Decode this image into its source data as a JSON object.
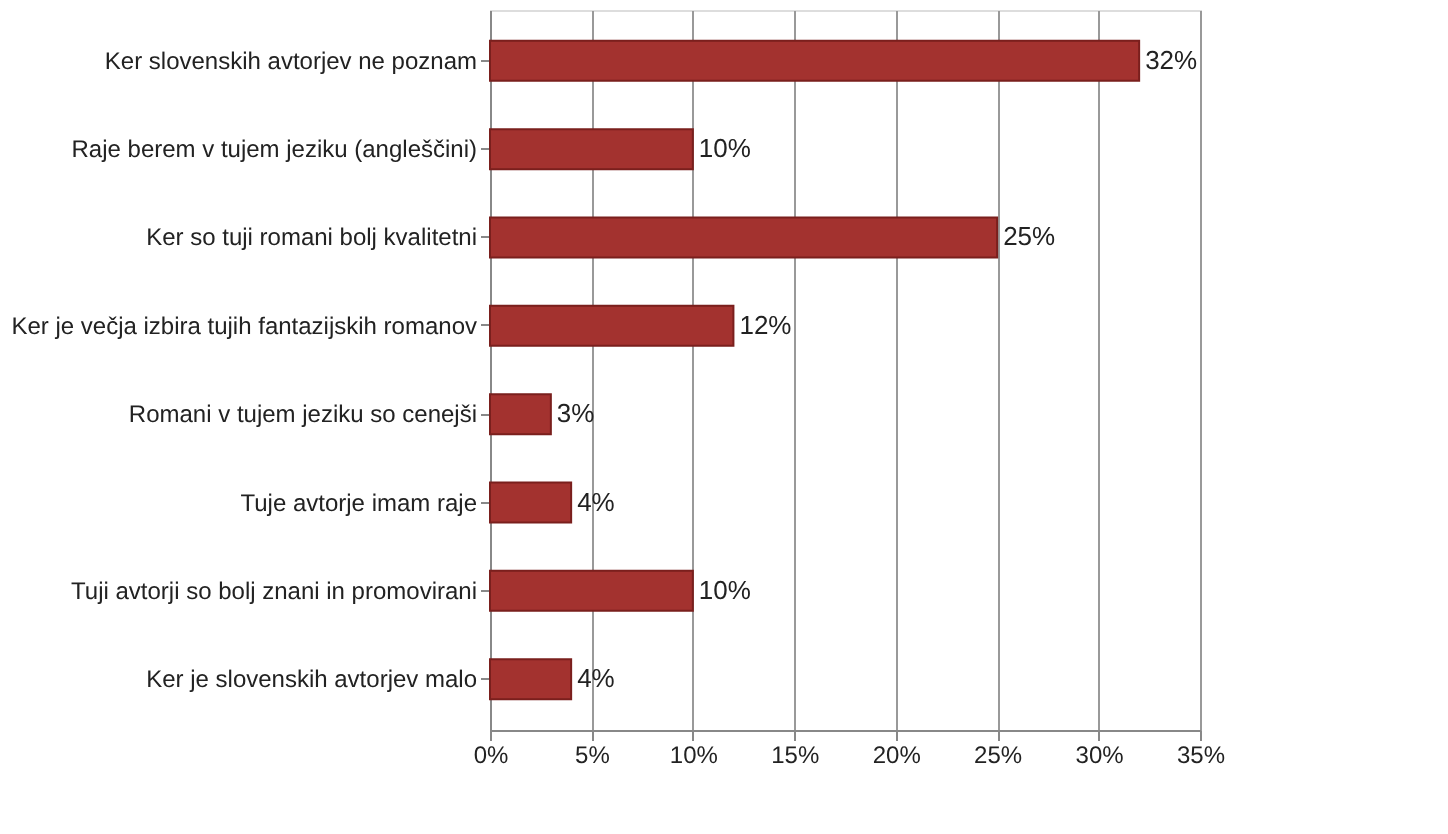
{
  "chart_data": {
    "type": "bar",
    "orientation": "horizontal",
    "categories": [
      "Ker slovenskih avtorjev ne poznam",
      "Raje berem v tujem jeziku (angleščini)",
      "Ker so tuji romani bolj kvalitetni",
      "Ker je večja izbira tujih fantazijskih romanov",
      "Romani v tujem jeziku so cenejši",
      "Tuje avtorje imam raje",
      "Tuji avtorji so bolj znani in promovirani",
      "Ker je slovenskih avtorjev malo"
    ],
    "values": [
      32,
      10,
      25,
      12,
      3,
      4,
      10,
      4
    ],
    "value_labels": [
      "32%",
      "10%",
      "25%",
      "12%",
      "3%",
      "4%",
      "10%",
      "4%"
    ],
    "color": "#a3322f",
    "xlim": [
      0,
      35
    ],
    "xticks": [
      {
        "value": 0,
        "label": "0%"
      },
      {
        "value": 5,
        "label": "5%"
      },
      {
        "value": 10,
        "label": "10%"
      },
      {
        "value": 15,
        "label": "15%"
      },
      {
        "value": 20,
        "label": "20%"
      },
      {
        "value": 25,
        "label": "25%"
      },
      {
        "value": 30,
        "label": "30%"
      },
      {
        "value": 35,
        "label": "35%"
      }
    ],
    "grid": "x"
  }
}
